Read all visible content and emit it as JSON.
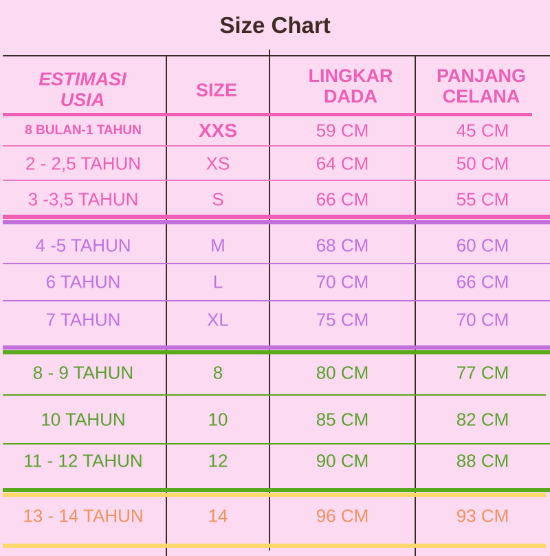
{
  "title": "Size Chart",
  "headers": {
    "age": "ESTIMASI USIA",
    "size": "SIZE",
    "chest": "LINGKAR DADA",
    "pants": "PANJANG CELANA"
  },
  "colors": {
    "pink": "#ee5fb5",
    "purple": "#bd72e2",
    "green": "#5aa02c",
    "orange": "#f0925e",
    "yellow_line": "#fcd96a",
    "purple_line": "#c070d8",
    "green_line": "#5aa81c",
    "title": "#3d2a22"
  },
  "rows": [
    {
      "age": "8 BULAN-1 TAHUN",
      "size": "XXS",
      "chest": "59 CM",
      "pants": "45 CM",
      "group": "pink"
    },
    {
      "age": "2 - 2,5 TAHUN",
      "size": "XS",
      "chest": "64 CM",
      "pants": "50 CM",
      "group": "pink"
    },
    {
      "age": "3 -3,5 TAHUN",
      "size": "S",
      "chest": "66 CM",
      "pants": "55 CM",
      "group": "pink"
    },
    {
      "age": "4 -5 TAHUN",
      "size": "M",
      "chest": "68 CM",
      "pants": "60 CM",
      "group": "purple"
    },
    {
      "age": "6 TAHUN",
      "size": "L",
      "chest": "70 CM",
      "pants": "66 CM",
      "group": "purple"
    },
    {
      "age": "7 TAHUN",
      "size": "XL",
      "chest": "75 CM",
      "pants": "70 CM",
      "group": "purple"
    },
    {
      "age": "8 - 9 TAHUN",
      "size": "8",
      "chest": "80 CM",
      "pants": "77 CM",
      "group": "green"
    },
    {
      "age": "10 TAHUN",
      "size": "10",
      "chest": "85 CM",
      "pants": "82 CM",
      "group": "green"
    },
    {
      "age": "11 - 12 TAHUN",
      "size": "12",
      "chest": "90 CM",
      "pants": "88 CM",
      "group": "green"
    },
    {
      "age": "13 - 14 TAHUN",
      "size": "14",
      "chest": "96 CM",
      "pants": "93 CM",
      "group": "orange"
    }
  ]
}
